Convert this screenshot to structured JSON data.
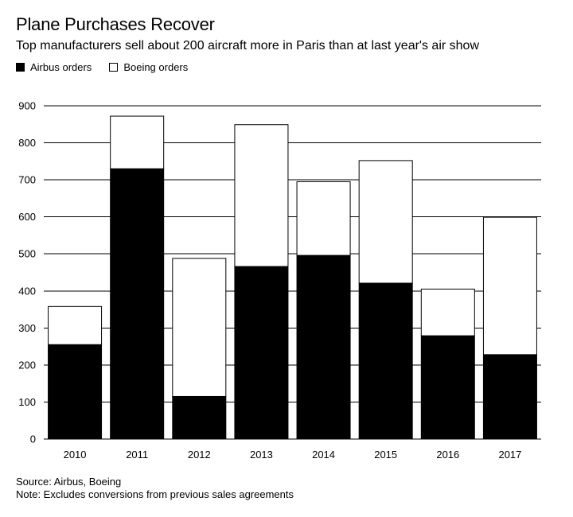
{
  "header": {
    "title": "Plane Purchases Recover",
    "subtitle": "Top manufacturers sell about 200 aircraft more in Paris than at last year's air show"
  },
  "legend": [
    {
      "label": "Airbus orders",
      "color": "#000000"
    },
    {
      "label": "Boeing orders",
      "color": "#ffffff"
    }
  ],
  "chart_data": {
    "type": "bar",
    "stacked": true,
    "categories": [
      "2010",
      "2011",
      "2012",
      "2013",
      "2014",
      "2015",
      "2016",
      "2017"
    ],
    "series": [
      {
        "name": "Airbus orders",
        "color": "#000000",
        "values": [
          255,
          730,
          115,
          466,
          496,
          421,
          279,
          228
        ]
      },
      {
        "name": "Boeing orders",
        "color": "#ffffff",
        "values": [
          103,
          142,
          373,
          383,
          199,
          331,
          126,
          371
        ]
      }
    ],
    "ylim": [
      0,
      900
    ],
    "yticks": [
      0,
      100,
      200,
      300,
      400,
      500,
      600,
      700,
      800,
      900
    ],
    "grid": true,
    "legend_position": "top-left"
  },
  "footer": {
    "source": "Source: Airbus, Boeing",
    "note": "Note: Excludes conversions from previous sales agreements"
  }
}
